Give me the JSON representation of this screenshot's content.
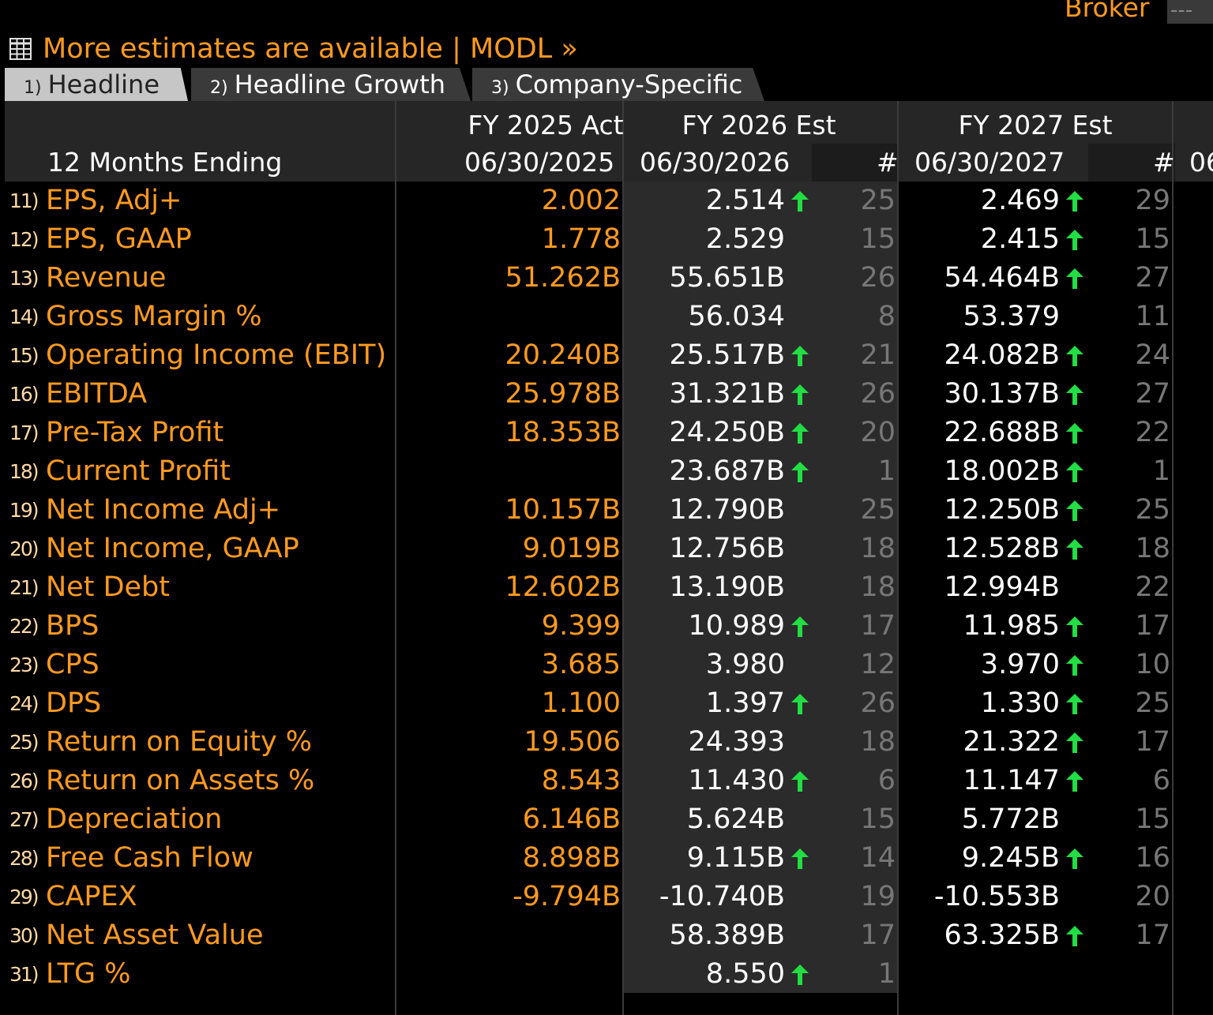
{
  "broker": {
    "label": "Broker",
    "value": "---"
  },
  "banner": {
    "text": "More estimates are available | MODL »"
  },
  "tabs": [
    {
      "num": "1)",
      "label": "Headline"
    },
    {
      "num": "2)",
      "label": "Headline Growth"
    },
    {
      "num": "3)",
      "label": "Company-Specific"
    }
  ],
  "colors": {
    "accent": "#ff9a1f",
    "up": "#22dd44",
    "shade": "#2b2b2b"
  },
  "header": {
    "period_label": "12 Months Ending",
    "fy2025": "FY 2025 Act",
    "fy2026": "FY 2026 Est",
    "fy2027": "FY 2027 Est",
    "d2025": "06/30/2025",
    "d2026": "06/30/2026",
    "d2027": "06/30/2027",
    "count_label": "#",
    "next_date_partial": "06"
  },
  "rows": [
    {
      "num": "11)",
      "label": "EPS, Adj+",
      "act": "2.002",
      "v26": "2.514",
      "up26": true,
      "c26": "25",
      "v27": "2.469",
      "up27": true,
      "c27": "29"
    },
    {
      "num": "12)",
      "label": "EPS, GAAP",
      "act": "1.778",
      "v26": "2.529",
      "up26": false,
      "c26": "15",
      "v27": "2.415",
      "up27": true,
      "c27": "15"
    },
    {
      "num": "13)",
      "label": "Revenue",
      "act": "51.262B",
      "v26": "55.651B",
      "up26": false,
      "c26": "26",
      "v27": "54.464B",
      "up27": true,
      "c27": "27"
    },
    {
      "num": "14)",
      "label": "Gross Margin %",
      "act": "",
      "v26": "56.034",
      "up26": false,
      "c26": "8",
      "v27": "53.379",
      "up27": false,
      "c27": "11"
    },
    {
      "num": "15)",
      "label": "Operating Income (EBIT)",
      "act": "20.240B",
      "v26": "25.517B",
      "up26": true,
      "c26": "21",
      "v27": "24.082B",
      "up27": true,
      "c27": "24"
    },
    {
      "num": "16)",
      "label": "EBITDA",
      "act": "25.978B",
      "v26": "31.321B",
      "up26": true,
      "c26": "26",
      "v27": "30.137B",
      "up27": true,
      "c27": "27"
    },
    {
      "num": "17)",
      "label": "Pre-Tax Profit",
      "act": "18.353B",
      "v26": "24.250B",
      "up26": true,
      "c26": "20",
      "v27": "22.688B",
      "up27": true,
      "c27": "22"
    },
    {
      "num": "18)",
      "label": "Current Profit",
      "act": "",
      "v26": "23.687B",
      "up26": true,
      "c26": "1",
      "v27": "18.002B",
      "up27": true,
      "c27": "1"
    },
    {
      "num": "19)",
      "label": "Net Income Adj+",
      "act": "10.157B",
      "v26": "12.790B",
      "up26": false,
      "c26": "25",
      "v27": "12.250B",
      "up27": true,
      "c27": "25"
    },
    {
      "num": "20)",
      "label": "Net Income, GAAP",
      "act": "9.019B",
      "v26": "12.756B",
      "up26": false,
      "c26": "18",
      "v27": "12.528B",
      "up27": true,
      "c27": "18"
    },
    {
      "num": "21)",
      "label": "Net Debt",
      "act": "12.602B",
      "v26": "13.190B",
      "up26": false,
      "c26": "18",
      "v27": "12.994B",
      "up27": false,
      "c27": "22"
    },
    {
      "num": "22)",
      "label": "BPS",
      "act": "9.399",
      "v26": "10.989",
      "up26": true,
      "c26": "17",
      "v27": "11.985",
      "up27": true,
      "c27": "17"
    },
    {
      "num": "23)",
      "label": "CPS",
      "act": "3.685",
      "v26": "3.980",
      "up26": false,
      "c26": "12",
      "v27": "3.970",
      "up27": true,
      "c27": "10"
    },
    {
      "num": "24)",
      "label": "DPS",
      "act": "1.100",
      "v26": "1.397",
      "up26": true,
      "c26": "26",
      "v27": "1.330",
      "up27": true,
      "c27": "25"
    },
    {
      "num": "25)",
      "label": "Return on Equity %",
      "act": "19.506",
      "v26": "24.393",
      "up26": false,
      "c26": "18",
      "v27": "21.322",
      "up27": true,
      "c27": "17"
    },
    {
      "num": "26)",
      "label": "Return on Assets %",
      "act": "8.543",
      "v26": "11.430",
      "up26": true,
      "c26": "6",
      "v27": "11.147",
      "up27": true,
      "c27": "6"
    },
    {
      "num": "27)",
      "label": "Depreciation",
      "act": "6.146B",
      "v26": "5.624B",
      "up26": false,
      "c26": "15",
      "v27": "5.772B",
      "up27": false,
      "c27": "15"
    },
    {
      "num": "28)",
      "label": "Free Cash Flow",
      "act": "8.898B",
      "v26": "9.115B",
      "up26": true,
      "c26": "14",
      "v27": "9.245B",
      "up27": true,
      "c27": "16"
    },
    {
      "num": "29)",
      "label": "CAPEX",
      "act": "-9.794B",
      "v26": "-10.740B",
      "up26": false,
      "c26": "19",
      "v27": "-10.553B",
      "up27": false,
      "c27": "20"
    },
    {
      "num": "30)",
      "label": "Net Asset Value",
      "act": "",
      "v26": "58.389B",
      "up26": false,
      "c26": "17",
      "v27": "63.325B",
      "up27": true,
      "c27": "17"
    },
    {
      "num": "31)",
      "label": "LTG %",
      "act": "",
      "v26": "8.550",
      "up26": true,
      "c26": "1",
      "v27": "",
      "up27": false,
      "c27": ""
    }
  ]
}
